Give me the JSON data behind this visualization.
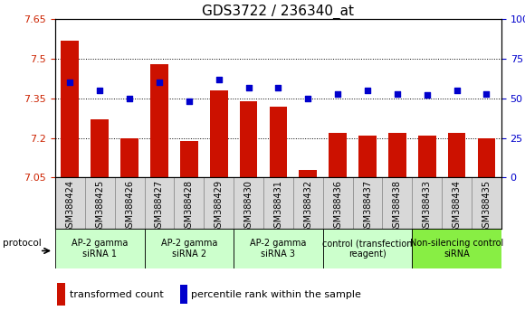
{
  "title": "GDS3722 / 236340_at",
  "samples": [
    "GSM388424",
    "GSM388425",
    "GSM388426",
    "GSM388427",
    "GSM388428",
    "GSM388429",
    "GSM388430",
    "GSM388431",
    "GSM388432",
    "GSM388436",
    "GSM388437",
    "GSM388438",
    "GSM388433",
    "GSM388434",
    "GSM388435"
  ],
  "bar_values": [
    7.57,
    7.27,
    7.2,
    7.48,
    7.19,
    7.38,
    7.34,
    7.32,
    7.08,
    7.22,
    7.21,
    7.22,
    7.21,
    7.22,
    7.2
  ],
  "dot_values": [
    60,
    55,
    50,
    60,
    48,
    62,
    57,
    57,
    50,
    53,
    55,
    53,
    52,
    55,
    53
  ],
  "ylim_left": [
    7.05,
    7.65
  ],
  "ylim_right": [
    0,
    100
  ],
  "yticks_left": [
    7.05,
    7.2,
    7.35,
    7.5,
    7.65
  ],
  "yticks_right": [
    0,
    25,
    50,
    75,
    100
  ],
  "ytick_labels_left": [
    "7.05",
    "7.2",
    "7.35",
    "7.5",
    "7.65"
  ],
  "ytick_labels_right": [
    "0",
    "25",
    "50",
    "75",
    "100%"
  ],
  "bar_color": "#cc1100",
  "dot_color": "#0000cc",
  "background_color": "#ffffff",
  "plot_bg": "#ffffff",
  "xticklabel_bg": "#d8d8d8",
  "groups": [
    {
      "label": "AP-2 gamma\nsiRNA 1",
      "start": 0,
      "end": 3,
      "color": "#ccffcc"
    },
    {
      "label": "AP-2 gamma\nsiRNA 2",
      "start": 3,
      "end": 6,
      "color": "#ccffcc"
    },
    {
      "label": "AP-2 gamma\nsiRNA 3",
      "start": 6,
      "end": 9,
      "color": "#ccffcc"
    },
    {
      "label": "control (transfection\nreagent)",
      "start": 9,
      "end": 12,
      "color": "#ccffcc"
    },
    {
      "label": "Non-silencing control\nsiRNA",
      "start": 12,
      "end": 15,
      "color": "#88ee44"
    }
  ],
  "protocol_label": "protocol",
  "legend_bar_label": "transformed count",
  "legend_dot_label": "percentile rank within the sample",
  "left_tick_color": "#cc2200",
  "right_tick_color": "#0000cc",
  "title_fontsize": 11,
  "tick_fontsize": 8,
  "sample_fontsize": 7,
  "group_fontsize": 7,
  "legend_fontsize": 8
}
